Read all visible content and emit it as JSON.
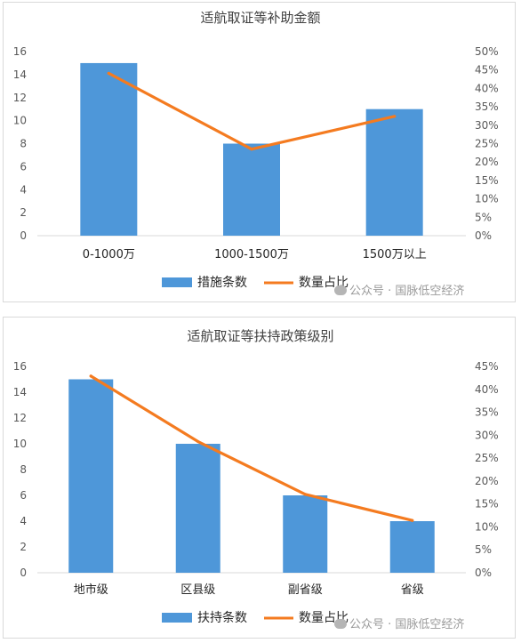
{
  "watermark": {
    "icon": "wechat-icon",
    "text": "公众号 · 国脉低空经济"
  },
  "chart_data": [
    {
      "type": "bar",
      "title": "适航取证等补助金额",
      "categories": [
        "0-1000万",
        "1000-1500万",
        "1500万以上"
      ],
      "series": [
        {
          "name": "措施条数",
          "type": "bar",
          "axis": "left",
          "color": "#4e97d9",
          "values": [
            15,
            8,
            11
          ]
        },
        {
          "name": "数量占比",
          "type": "line",
          "axis": "right",
          "color": "#f47b20",
          "values": [
            44.1,
            23.5,
            32.4
          ]
        }
      ],
      "y_left": {
        "min": 0,
        "max": 16,
        "step": 2,
        "ticks": [
          "0",
          "2",
          "4",
          "6",
          "8",
          "10",
          "12",
          "14",
          "16"
        ]
      },
      "y_right": {
        "min": 0,
        "max": 50,
        "step": 5,
        "ticks": [
          "0%",
          "5%",
          "10%",
          "15%",
          "20%",
          "25%",
          "30%",
          "35%",
          "40%",
          "45%",
          "50%"
        ]
      },
      "legend_position": "bottom",
      "grid": false
    },
    {
      "type": "bar",
      "title": "适航取证等扶持政策级别",
      "categories": [
        "地市级",
        "区县级",
        "副省级",
        "省级"
      ],
      "series": [
        {
          "name": "扶持条数",
          "type": "bar",
          "axis": "left",
          "color": "#4e97d9",
          "values": [
            15,
            10,
            6,
            4
          ]
        },
        {
          "name": "数量占比",
          "type": "line",
          "axis": "right",
          "color": "#f47b20",
          "values": [
            42.9,
            28.6,
            17.1,
            11.4
          ]
        }
      ],
      "y_left": {
        "min": 0,
        "max": 16,
        "step": 2,
        "ticks": [
          "0",
          "2",
          "4",
          "6",
          "8",
          "10",
          "12",
          "14",
          "16"
        ]
      },
      "y_right": {
        "min": 0,
        "max": 45,
        "step": 5,
        "ticks": [
          "0%",
          "5%",
          "10%",
          "15%",
          "20%",
          "25%",
          "30%",
          "35%",
          "40%",
          "45%"
        ]
      },
      "legend_position": "bottom",
      "grid": false
    }
  ]
}
